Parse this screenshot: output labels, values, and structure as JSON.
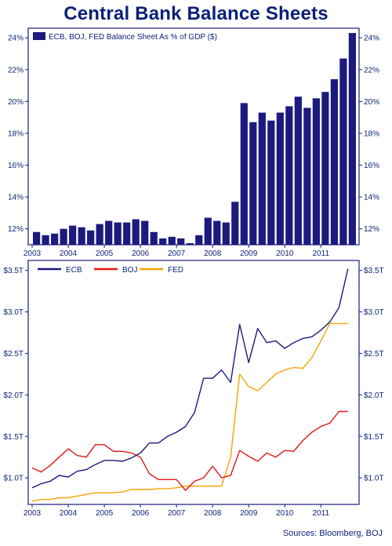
{
  "title": "Central Bank Balance Sheets",
  "source": "Sources: Bloomberg, BOJ",
  "colors": {
    "navy": "#1b1a7e",
    "text": "#0a1f78",
    "ecb": "#1b1a7e",
    "boj": "#e01818",
    "fed": "#f5a300"
  },
  "chart_data": [
    {
      "type": "bar",
      "legend": "ECB, BOJ, FED Balance Sheet As % of GDP ($)",
      "legend_position": "top-left",
      "ylim": [
        11,
        24.6
      ],
      "y_ticks": [
        12,
        14,
        16,
        18,
        20,
        22,
        24
      ],
      "y_tick_labels": [
        "12%",
        "14%",
        "16%",
        "18%",
        "20%",
        "22%",
        "24%"
      ],
      "x_range": [
        2003,
        2011.95
      ],
      "x_ticks": [
        2003,
        2004,
        2005,
        2006,
        2007,
        2008,
        2009,
        2010,
        2011
      ],
      "x_tick_labels": [
        "2003",
        "2004",
        "2005",
        "2006",
        "2007",
        "2008",
        "2009",
        "2010",
        "2011"
      ],
      "x": [
        2003.0,
        2003.25,
        2003.5,
        2003.75,
        2004.0,
        2004.25,
        2004.5,
        2004.75,
        2005.0,
        2005.25,
        2005.5,
        2005.75,
        2006.0,
        2006.25,
        2006.5,
        2006.75,
        2007.0,
        2007.25,
        2007.5,
        2007.75,
        2008.0,
        2008.25,
        2008.5,
        2008.75,
        2009.0,
        2009.25,
        2009.5,
        2009.75,
        2010.0,
        2010.25,
        2010.5,
        2010.75,
        2011.0,
        2011.25,
        2011.5,
        2011.75
      ],
      "values": [
        11.8,
        11.6,
        11.7,
        12.0,
        12.2,
        12.1,
        11.9,
        12.3,
        12.5,
        12.4,
        12.4,
        12.6,
        12.5,
        11.8,
        11.4,
        11.5,
        11.4,
        11.1,
        11.6,
        12.7,
        12.5,
        12.4,
        13.7,
        19.9,
        18.7,
        19.3,
        18.8,
        19.3,
        19.7,
        20.3,
        19.6,
        20.2,
        20.6,
        21.4,
        22.7,
        24.3
      ],
      "grid": false
    },
    {
      "type": "line",
      "legend_position": "top-left",
      "ylim": [
        0.68,
        3.62
      ],
      "y_ticks": [
        1.0,
        1.5,
        2.0,
        2.5,
        3.0,
        3.5
      ],
      "y_tick_labels": [
        "$1.0T",
        "$1.5T",
        "$2.0T",
        "$2.5T",
        "$3.0T",
        "$3.5T"
      ],
      "x_range": [
        2003,
        2011.95
      ],
      "x_ticks": [
        2003,
        2004,
        2005,
        2006,
        2007,
        2008,
        2009,
        2010,
        2011
      ],
      "x_tick_labels": [
        "2003",
        "2004",
        "2005",
        "2006",
        "2007",
        "2008",
        "2009",
        "2010",
        "2011"
      ],
      "grid": false,
      "series": [
        {
          "name": "ECB",
          "color": "#1b1a7e",
          "points": [
            [
              2003.0,
              0.88
            ],
            [
              2003.25,
              0.93
            ],
            [
              2003.5,
              0.96
            ],
            [
              2003.75,
              1.03
            ],
            [
              2004.0,
              1.01
            ],
            [
              2004.25,
              1.08
            ],
            [
              2004.5,
              1.1
            ],
            [
              2004.75,
              1.16
            ],
            [
              2005.0,
              1.21
            ],
            [
              2005.25,
              1.21
            ],
            [
              2005.5,
              1.2
            ],
            [
              2005.75,
              1.24
            ],
            [
              2006.0,
              1.3
            ],
            [
              2006.25,
              1.42
            ],
            [
              2006.5,
              1.42
            ],
            [
              2006.75,
              1.5
            ],
            [
              2007.0,
              1.55
            ],
            [
              2007.25,
              1.62
            ],
            [
              2007.5,
              1.79
            ],
            [
              2007.75,
              2.2
            ],
            [
              2008.0,
              2.2
            ],
            [
              2008.25,
              2.3
            ],
            [
              2008.5,
              2.15
            ],
            [
              2008.75,
              2.85
            ],
            [
              2009.0,
              2.39
            ],
            [
              2009.25,
              2.8
            ],
            [
              2009.5,
              2.63
            ],
            [
              2009.75,
              2.65
            ],
            [
              2010.0,
              2.56
            ],
            [
              2010.25,
              2.63
            ],
            [
              2010.5,
              2.68
            ],
            [
              2010.75,
              2.7
            ],
            [
              2011.0,
              2.78
            ],
            [
              2011.25,
              2.88
            ],
            [
              2011.5,
              3.05
            ],
            [
              2011.75,
              3.52
            ]
          ]
        },
        {
          "name": "BOJ",
          "color": "#e01818",
          "points": [
            [
              2003.0,
              1.12
            ],
            [
              2003.25,
              1.07
            ],
            [
              2003.5,
              1.15
            ],
            [
              2003.75,
              1.25
            ],
            [
              2004.0,
              1.35
            ],
            [
              2004.25,
              1.27
            ],
            [
              2004.5,
              1.25
            ],
            [
              2004.75,
              1.4
            ],
            [
              2005.0,
              1.4
            ],
            [
              2005.25,
              1.32
            ],
            [
              2005.5,
              1.32
            ],
            [
              2005.75,
              1.3
            ],
            [
              2006.0,
              1.25
            ],
            [
              2006.25,
              1.05
            ],
            [
              2006.5,
              0.98
            ],
            [
              2006.75,
              0.98
            ],
            [
              2007.0,
              0.98
            ],
            [
              2007.25,
              0.85
            ],
            [
              2007.5,
              0.96
            ],
            [
              2007.75,
              1.0
            ],
            [
              2008.0,
              1.14
            ],
            [
              2008.25,
              1.0
            ],
            [
              2008.5,
              1.03
            ],
            [
              2008.75,
              1.33
            ],
            [
              2009.0,
              1.26
            ],
            [
              2009.25,
              1.2
            ],
            [
              2009.5,
              1.3
            ],
            [
              2009.75,
              1.25
            ],
            [
              2010.0,
              1.33
            ],
            [
              2010.25,
              1.32
            ],
            [
              2010.5,
              1.45
            ],
            [
              2010.75,
              1.55
            ],
            [
              2011.0,
              1.62
            ],
            [
              2011.25,
              1.66
            ],
            [
              2011.5,
              1.8
            ],
            [
              2011.75,
              1.8
            ]
          ]
        },
        {
          "name": "FED",
          "color": "#f5a300",
          "points": [
            [
              2003.0,
              0.72
            ],
            [
              2003.25,
              0.74
            ],
            [
              2003.5,
              0.74
            ],
            [
              2003.75,
              0.76
            ],
            [
              2004.0,
              0.76
            ],
            [
              2004.25,
              0.78
            ],
            [
              2004.5,
              0.8
            ],
            [
              2004.75,
              0.82
            ],
            [
              2005.0,
              0.82
            ],
            [
              2005.25,
              0.82
            ],
            [
              2005.5,
              0.83
            ],
            [
              2005.75,
              0.86
            ],
            [
              2006.0,
              0.86
            ],
            [
              2006.25,
              0.86
            ],
            [
              2006.5,
              0.87
            ],
            [
              2006.75,
              0.87
            ],
            [
              2007.0,
              0.88
            ],
            [
              2007.25,
              0.9
            ],
            [
              2007.5,
              0.9
            ],
            [
              2007.75,
              0.9
            ],
            [
              2008.0,
              0.9
            ],
            [
              2008.25,
              0.9
            ],
            [
              2008.5,
              1.25
            ],
            [
              2008.75,
              2.25
            ],
            [
              2009.0,
              2.1
            ],
            [
              2009.25,
              2.05
            ],
            [
              2009.5,
              2.15
            ],
            [
              2009.75,
              2.25
            ],
            [
              2010.0,
              2.3
            ],
            [
              2010.25,
              2.33
            ],
            [
              2010.5,
              2.32
            ],
            [
              2010.75,
              2.45
            ],
            [
              2011.0,
              2.65
            ],
            [
              2011.25,
              2.86
            ],
            [
              2011.5,
              2.86
            ],
            [
              2011.75,
              2.86
            ]
          ]
        }
      ]
    }
  ]
}
